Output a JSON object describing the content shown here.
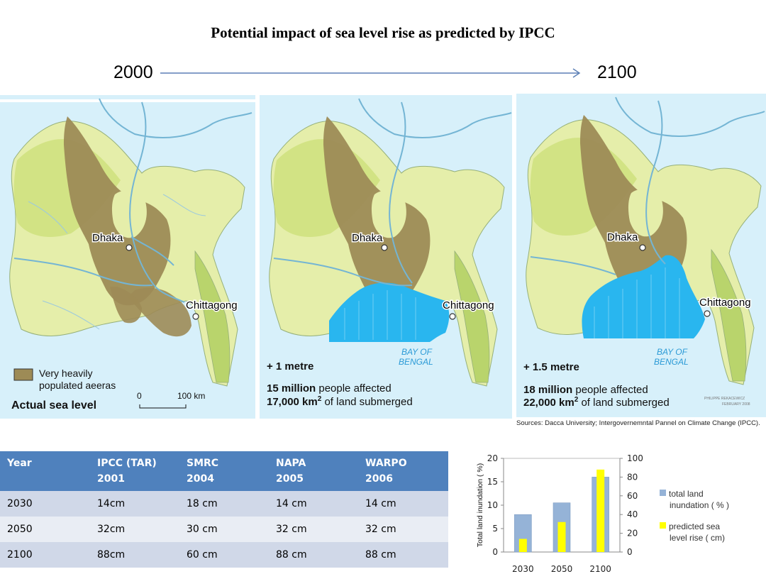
{
  "title": "Potential impact of sea level rise as predicted by IPCC",
  "timeline": {
    "start": "2000",
    "end": "2100",
    "arrow_color": "#5b7fb5"
  },
  "maps": [
    {
      "cities": {
        "dhaka": "Dhaka",
        "chittagong": "Chittagong"
      },
      "scenario": "Actual sea level",
      "legend_label_1": "Very heavily",
      "legend_label_2": "populated aeeras",
      "scale_zero": "0",
      "scale_label": "100 km"
    },
    {
      "cities": {
        "dhaka": "Dhaka",
        "chittagong": "Chittagong"
      },
      "bay_1": "BAY OF",
      "bay_2": "BENGAL",
      "rise": "+ 1 metre",
      "people_bold": "15 million",
      "people_rest": " people affected",
      "land_bold": "17,000 km",
      "land_rest": " of land submerged"
    },
    {
      "cities": {
        "dhaka": "Dhaka",
        "chittagong": "Chittagong"
      },
      "bay_1": "BAY OF",
      "bay_2": "BENGAL",
      "rise": "+ 1.5 metre",
      "people_bold": "18 million",
      "people_rest": " people affected",
      "land_bold": "22,000 km",
      "land_rest": " of land submerged",
      "credit_1": "PHILIPPE REKACEWICZ",
      "credit_2": "FEBRUARY 2008"
    }
  ],
  "sources": "Sources: Dacca University; Intergovernemntal Pannel on Climate Change (IPCC).",
  "table": {
    "headers": [
      [
        "Year",
        ""
      ],
      [
        "IPCC (TAR)",
        "2001"
      ],
      [
        "SMRC",
        "2004"
      ],
      [
        "NAPA",
        "2005"
      ],
      [
        "WARPO",
        "2006"
      ]
    ],
    "rows": [
      [
        "2030",
        "14cm",
        "18 cm",
        "14 cm",
        "14 cm"
      ],
      [
        "2050",
        "32cm",
        "30 cm",
        "32 cm",
        "32 cm"
      ],
      [
        "2100",
        "88cm",
        "60 cm",
        "88 cm",
        "88 cm"
      ]
    ]
  },
  "chart_data": {
    "type": "bar",
    "categories": [
      "2030",
      "2050",
      "2100"
    ],
    "series": [
      {
        "name": "total land inundation ( % )",
        "axis": "left",
        "color": "#95b3d7",
        "values": [
          8,
          10.5,
          16
        ]
      },
      {
        "name": "predicted sea level rise ( cm)",
        "axis": "right",
        "color": "#ffff00",
        "values": [
          14,
          32,
          88
        ]
      }
    ],
    "ylabel": "Total land inundation ( %)",
    "ylim": [
      0,
      20
    ],
    "yticks": [
      "0",
      "5",
      "10",
      "15",
      "20"
    ],
    "y2lim": [
      0,
      100
    ],
    "y2ticks": [
      "0",
      "20",
      "40",
      "60",
      "80",
      "100"
    ],
    "legend_position": "right",
    "legend": {
      "series1_line1": "total land",
      "series1_line2": "inundation ( % )",
      "series2_line1": "predicted sea",
      "series2_line2": "level rise  ( cm)"
    }
  }
}
